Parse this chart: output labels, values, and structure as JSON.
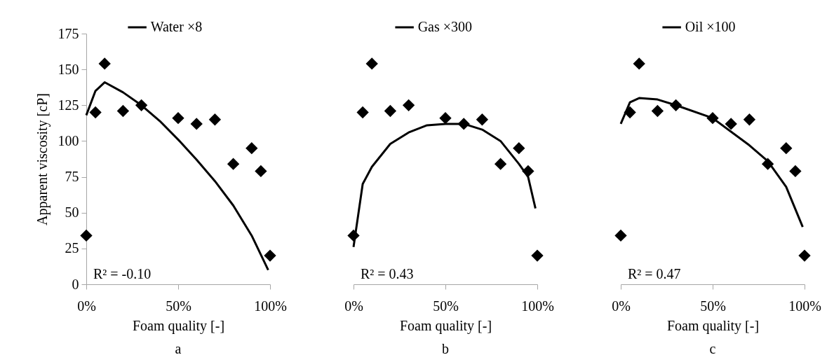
{
  "chart_data": [
    {
      "type": "scatter",
      "title": "a",
      "xlabel": "Foam quality [-]",
      "ylabel": "Apparent viscosity [cP]",
      "xlim": [
        0,
        1
      ],
      "xticks": [
        {
          "value": 0,
          "label": "0%"
        },
        {
          "value": 0.5,
          "label": "50%"
        },
        {
          "value": 1,
          "label": "100%"
        }
      ],
      "ylim": [
        0,
        175
      ],
      "yticks": [
        0,
        25,
        50,
        75,
        100,
        125,
        150,
        175
      ],
      "legend": "top",
      "annotations": [
        "R² = -0.10"
      ],
      "series": [
        {
          "color": "#000000",
          "marker": "diamond",
          "x": [
            0,
            0.05,
            0.1,
            0.2,
            0.3,
            0.5,
            0.6,
            0.7,
            0.8,
            0.9,
            0.95,
            1
          ],
          "values": [
            34,
            120,
            154,
            121,
            125,
            116,
            112,
            115,
            84,
            95,
            79,
            20
          ]
        },
        {
          "name": "Water ×8",
          "type": "line",
          "color": "#000000",
          "x": [
            0,
            0.05,
            0.1,
            0.2,
            0.3,
            0.4,
            0.5,
            0.6,
            0.7,
            0.8,
            0.9,
            0.99
          ],
          "values": [
            118,
            135,
            141,
            134,
            125,
            114,
            101,
            87,
            72,
            55,
            34,
            10
          ]
        }
      ]
    },
    {
      "type": "scatter",
      "title": "b",
      "xlabel": "Foam quality [-]",
      "xlim": [
        0,
        1
      ],
      "xticks": [
        {
          "value": 0,
          "label": "0%"
        },
        {
          "value": 0.5,
          "label": "50%"
        },
        {
          "value": 1,
          "label": "100%"
        }
      ],
      "ylim": [
        0,
        175
      ],
      "tick_labels": "x",
      "legend": "top",
      "annotations": [
        "R² = 0.43"
      ],
      "series": [
        {
          "color": "#000000",
          "marker": "diamond",
          "x": [
            0,
            0.05,
            0.1,
            0.2,
            0.3,
            0.5,
            0.6,
            0.7,
            0.8,
            0.9,
            0.95,
            1
          ],
          "values": [
            34,
            120,
            154,
            121,
            125,
            116,
            112,
            115,
            84,
            95,
            79,
            20
          ]
        },
        {
          "name": "Gas ×300",
          "type": "line",
          "color": "#000000",
          "x": [
            0,
            0.05,
            0.1,
            0.2,
            0.3,
            0.4,
            0.5,
            0.6,
            0.7,
            0.8,
            0.9,
            0.95,
            0.99
          ],
          "values": [
            26,
            70,
            82,
            98,
            106,
            111,
            112,
            112,
            108,
            100,
            84,
            75,
            53
          ]
        }
      ]
    },
    {
      "type": "scatter",
      "title": "c",
      "xlabel": "Foam quality [-]",
      "xlim": [
        0,
        1
      ],
      "xticks": [
        {
          "value": 0,
          "label": "0%"
        },
        {
          "value": 0.5,
          "label": "50%"
        },
        {
          "value": 1,
          "label": "100%"
        }
      ],
      "ylim": [
        0,
        175
      ],
      "tick_labels": "x",
      "legend": "top",
      "annotations": [
        "R² = 0.47"
      ],
      "series": [
        {
          "color": "#000000",
          "marker": "diamond",
          "x": [
            0,
            0.05,
            0.1,
            0.2,
            0.3,
            0.5,
            0.6,
            0.7,
            0.8,
            0.9,
            0.95,
            1
          ],
          "values": [
            34,
            120,
            154,
            121,
            125,
            116,
            112,
            115,
            84,
            95,
            79,
            20
          ]
        },
        {
          "name": "Oil ×100",
          "type": "line",
          "color": "#000000",
          "x": [
            0,
            0.05,
            0.1,
            0.2,
            0.3,
            0.5,
            0.7,
            0.8,
            0.9,
            0.99
          ],
          "values": [
            112,
            127,
            130,
            129,
            125,
            116,
            97,
            86,
            68,
            40
          ]
        }
      ]
    }
  ]
}
